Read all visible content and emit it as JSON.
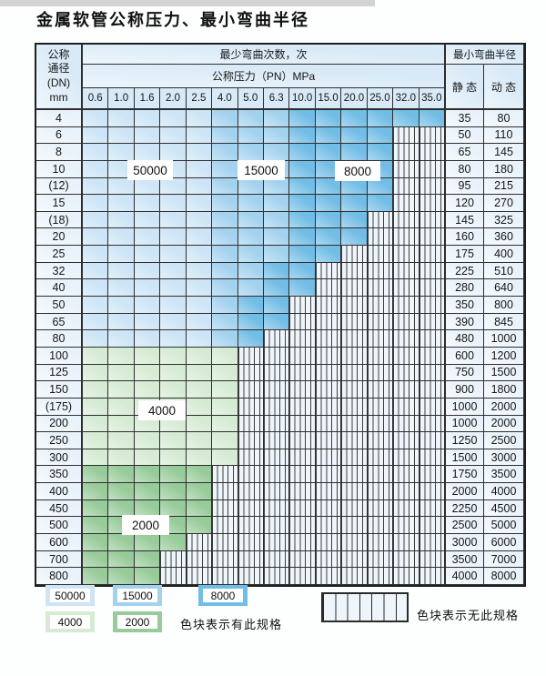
{
  "title": "金属软管公称压力、最小弯曲半径",
  "colors": {
    "b1": "#cde5f6",
    "b2": "#a3d2ef",
    "b3": "#72bde6",
    "g1": "#d6ebd4",
    "g2": "#97cb99",
    "hatch_bg": "#eef5fb",
    "header_bg": "#d8eaf7",
    "label_cell_bg": "#e9f2fa",
    "border": "#2e2e2e"
  },
  "table": {
    "header": {
      "dn_lines": [
        "公称",
        "通径",
        "(DN)",
        "mm"
      ],
      "bend_cycles_label": "最少弯曲次数，次",
      "pressure_label": "公称压力（PN）MPa",
      "pressure_columns": [
        "0.6",
        "1.0",
        "1.6",
        "2.0",
        "2.5",
        "4.0",
        "5.0",
        "6.3",
        "10.0",
        "15.0",
        "20.0",
        "25.0",
        "32.0",
        "35.0"
      ],
      "radius_label": "最小弯曲半径",
      "static_label": "静 态",
      "dynamic_label": "动 态"
    },
    "rows": [
      {
        "dn": "4",
        "cells": [
          "b1",
          "b1",
          "b1",
          "b1",
          "b1",
          "b2",
          "b2",
          "b2",
          "b3",
          "b3",
          "b3",
          "b3",
          "b3",
          "b3"
        ],
        "static": "35",
        "dynamic": "80"
      },
      {
        "dn": "6",
        "cells": [
          "b1",
          "b1",
          "b1",
          "b1",
          "b1",
          "b2",
          "b2",
          "b2",
          "b3",
          "b3",
          "b3",
          "b3",
          "x",
          "x"
        ],
        "static": "50",
        "dynamic": "110"
      },
      {
        "dn": "8",
        "cells": [
          "b1",
          "b1",
          "b1",
          "b1",
          "b1",
          "b2",
          "b2",
          "b2",
          "b3",
          "b3",
          "b3",
          "b3",
          "x",
          "x"
        ],
        "static": "65",
        "dynamic": "145"
      },
      {
        "dn": "10",
        "cells": [
          "b1",
          "b1",
          "b1",
          "b1",
          "b1",
          "b2",
          "b2",
          "b2",
          "b3",
          "b3",
          "b3",
          "b3",
          "x",
          "x"
        ],
        "static": "80",
        "dynamic": "180"
      },
      {
        "dn": "(12)",
        "cells": [
          "b1",
          "b1",
          "b1",
          "b1",
          "b1",
          "b2",
          "b2",
          "b2",
          "b3",
          "b3",
          "b3",
          "b3",
          "x",
          "x"
        ],
        "static": "95",
        "dynamic": "215"
      },
      {
        "dn": "15",
        "cells": [
          "b1",
          "b1",
          "b1",
          "b1",
          "b1",
          "b2",
          "b2",
          "b2",
          "b3",
          "b3",
          "b3",
          "b3",
          "x",
          "x"
        ],
        "static": "120",
        "dynamic": "270"
      },
      {
        "dn": "(18)",
        "cells": [
          "b1",
          "b1",
          "b1",
          "b1",
          "b1",
          "b2",
          "b2",
          "b2",
          "b3",
          "b3",
          "b3",
          "x",
          "x",
          "x"
        ],
        "static": "145",
        "dynamic": "325"
      },
      {
        "dn": "20",
        "cells": [
          "b1",
          "b1",
          "b1",
          "b1",
          "b1",
          "b2",
          "b2",
          "b2",
          "b3",
          "b3",
          "b3",
          "x",
          "x",
          "x"
        ],
        "static": "160",
        "dynamic": "360"
      },
      {
        "dn": "25",
        "cells": [
          "b1",
          "b1",
          "b1",
          "b1",
          "b1",
          "b2",
          "b2",
          "b2",
          "b3",
          "b3",
          "x",
          "x",
          "x",
          "x"
        ],
        "static": "175",
        "dynamic": "400"
      },
      {
        "dn": "32",
        "cells": [
          "b1",
          "b1",
          "b1",
          "b1",
          "b1",
          "b2",
          "b2",
          "b3",
          "b3",
          "x",
          "x",
          "x",
          "x",
          "x"
        ],
        "static": "225",
        "dynamic": "510"
      },
      {
        "dn": "40",
        "cells": [
          "b1",
          "b1",
          "b1",
          "b1",
          "b1",
          "b2",
          "b2",
          "b3",
          "b3",
          "x",
          "x",
          "x",
          "x",
          "x"
        ],
        "static": "280",
        "dynamic": "640"
      },
      {
        "dn": "50",
        "cells": [
          "b1",
          "b1",
          "b1",
          "b1",
          "b1",
          "b2",
          "b3",
          "b3",
          "x",
          "x",
          "x",
          "x",
          "x",
          "x"
        ],
        "static": "350",
        "dynamic": "800"
      },
      {
        "dn": "65",
        "cells": [
          "b1",
          "b1",
          "b1",
          "b1",
          "b1",
          "b2",
          "b3",
          "b3",
          "x",
          "x",
          "x",
          "x",
          "x",
          "x"
        ],
        "static": "390",
        "dynamic": "845"
      },
      {
        "dn": "80",
        "cells": [
          "b1",
          "b1",
          "b1",
          "b1",
          "b1",
          "b2",
          "b3",
          "x",
          "x",
          "x",
          "x",
          "x",
          "x",
          "x"
        ],
        "static": "480",
        "dynamic": "1000"
      },
      {
        "dn": "100",
        "cells": [
          "g1",
          "g1",
          "g1",
          "g1",
          "g1",
          "g1",
          "x",
          "x",
          "x",
          "x",
          "x",
          "x",
          "x",
          "x"
        ],
        "static": "600",
        "dynamic": "1200"
      },
      {
        "dn": "125",
        "cells": [
          "g1",
          "g1",
          "g1",
          "g1",
          "g1",
          "g1",
          "x",
          "x",
          "x",
          "x",
          "x",
          "x",
          "x",
          "x"
        ],
        "static": "750",
        "dynamic": "1500"
      },
      {
        "dn": "150",
        "cells": [
          "g1",
          "g1",
          "g1",
          "g1",
          "g1",
          "g1",
          "x",
          "x",
          "x",
          "x",
          "x",
          "x",
          "x",
          "x"
        ],
        "static": "900",
        "dynamic": "1800"
      },
      {
        "dn": "(175)",
        "cells": [
          "g1",
          "g1",
          "g1",
          "g1",
          "g1",
          "g1",
          "x",
          "x",
          "x",
          "x",
          "x",
          "x",
          "x",
          "x"
        ],
        "static": "1000",
        "dynamic": "2000"
      },
      {
        "dn": "200",
        "cells": [
          "g1",
          "g1",
          "g1",
          "g1",
          "g1",
          "g1",
          "x",
          "x",
          "x",
          "x",
          "x",
          "x",
          "x",
          "x"
        ],
        "static": "1000",
        "dynamic": "2000"
      },
      {
        "dn": "250",
        "cells": [
          "g1",
          "g1",
          "g1",
          "g1",
          "g1",
          "g1",
          "x",
          "x",
          "x",
          "x",
          "x",
          "x",
          "x",
          "x"
        ],
        "static": "1250",
        "dynamic": "2500"
      },
      {
        "dn": "300",
        "cells": [
          "g1",
          "g1",
          "g1",
          "g1",
          "g1",
          "g1",
          "x",
          "x",
          "x",
          "x",
          "x",
          "x",
          "x",
          "x"
        ],
        "static": "1500",
        "dynamic": "3000"
      },
      {
        "dn": "350",
        "cells": [
          "g2",
          "g2",
          "g2",
          "g2",
          "g2",
          "x",
          "x",
          "x",
          "x",
          "x",
          "x",
          "x",
          "x",
          "x"
        ],
        "static": "1750",
        "dynamic": "3500"
      },
      {
        "dn": "400",
        "cells": [
          "g2",
          "g2",
          "g2",
          "g2",
          "g2",
          "x",
          "x",
          "x",
          "x",
          "x",
          "x",
          "x",
          "x",
          "x"
        ],
        "static": "2000",
        "dynamic": "4000"
      },
      {
        "dn": "450",
        "cells": [
          "g2",
          "g2",
          "g2",
          "g2",
          "g2",
          "x",
          "x",
          "x",
          "x",
          "x",
          "x",
          "x",
          "x",
          "x"
        ],
        "static": "2250",
        "dynamic": "4500"
      },
      {
        "dn": "500",
        "cells": [
          "g2",
          "g2",
          "g2",
          "g2",
          "g2",
          "x",
          "x",
          "x",
          "x",
          "x",
          "x",
          "x",
          "x",
          "x"
        ],
        "static": "2500",
        "dynamic": "5000"
      },
      {
        "dn": "600",
        "cells": [
          "g2",
          "g2",
          "g2",
          "g2",
          "x",
          "x",
          "x",
          "x",
          "x",
          "x",
          "x",
          "x",
          "x",
          "x"
        ],
        "static": "3000",
        "dynamic": "6000"
      },
      {
        "dn": "700",
        "cells": [
          "g2",
          "g2",
          "g2",
          "x",
          "x",
          "x",
          "x",
          "x",
          "x",
          "x",
          "x",
          "x",
          "x",
          "x"
        ],
        "static": "3500",
        "dynamic": "7000"
      },
      {
        "dn": "800",
        "cells": [
          "g2",
          "g2",
          "g2",
          "x",
          "x",
          "x",
          "x",
          "x",
          "x",
          "x",
          "x",
          "x",
          "x",
          "x"
        ],
        "static": "4000",
        "dynamic": "8000"
      }
    ]
  },
  "overlays": {
    "b1": "50000",
    "b2": "15000",
    "b3": "8000",
    "g1": "4000",
    "g2": "2000"
  },
  "legend": {
    "items": [
      {
        "key": "b1",
        "label": "50000"
      },
      {
        "key": "b2",
        "label": "15000"
      },
      {
        "key": "b3",
        "label": "8000"
      },
      {
        "key": "g1",
        "label": "4000"
      },
      {
        "key": "g2",
        "label": "2000"
      }
    ],
    "has_spec_note": "色块表示有此规格",
    "no_spec_note": "色块表示无此规格"
  }
}
